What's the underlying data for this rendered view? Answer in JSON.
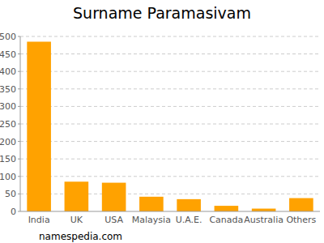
{
  "chart_data": {
    "type": "bar",
    "title": "Surname Paramasivam",
    "categories": [
      "India",
      "UK",
      "USA",
      "Malaysia",
      "U.A.E.",
      "Canada",
      "Australia",
      "Others"
    ],
    "values": [
      485,
      85,
      82,
      42,
      35,
      16,
      8,
      38
    ],
    "color": "#ffa200",
    "ylim": [
      0,
      500
    ],
    "yticks": [
      0,
      50,
      100,
      150,
      200,
      250,
      300,
      350,
      400,
      450,
      500
    ],
    "grid": true,
    "annotations": [
      "namespedia.com"
    ]
  }
}
